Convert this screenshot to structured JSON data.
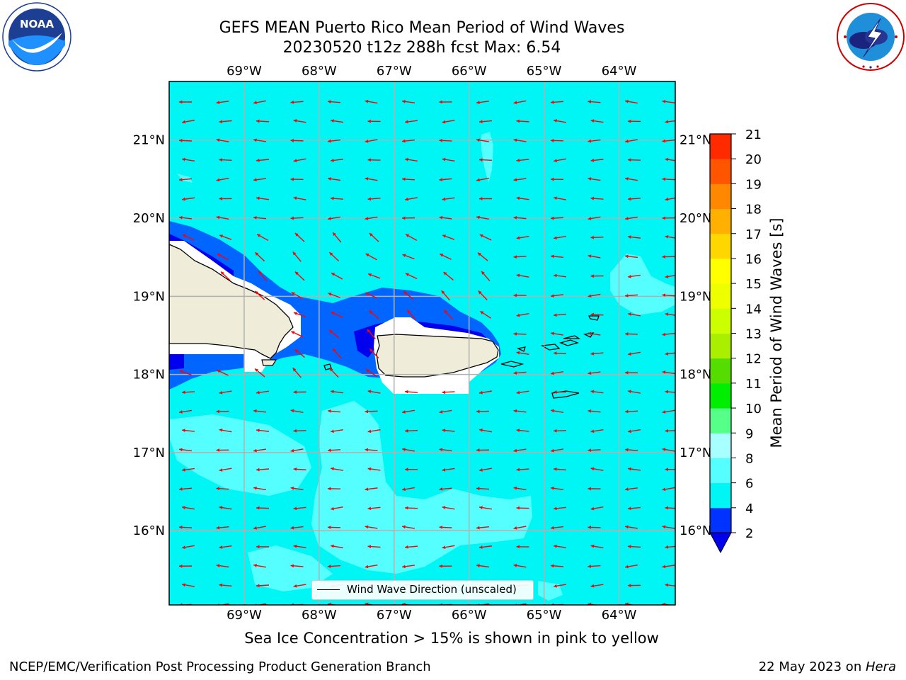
{
  "title": {
    "line1": "GEFS MEAN Puerto Rico Mean Period of Wind Waves",
    "line2": "20230520 t12z 288h fcst   Max: 6.54"
  },
  "logos": {
    "left": {
      "name": "NOAA",
      "text": "NOAA",
      "ring_text": "NATIONAL OCEANIC AND ATMOSPHERIC ADMINISTRATION · U.S. DEPARTMENT OF COMMERCE"
    },
    "right": {
      "name": "National Weather Service",
      "ring_text": "NATIONAL WEATHER SERVICE"
    }
  },
  "map": {
    "lon_range": [
      -70.0,
      -63.25
    ],
    "lat_range": [
      15.05,
      21.75
    ],
    "lon_ticks": [
      "69°W",
      "68°W",
      "67°W",
      "66°W",
      "65°W",
      "64°W"
    ],
    "lat_ticks": [
      "21°N",
      "20°N",
      "19°N",
      "18°N",
      "17°N",
      "16°N"
    ],
    "gridlines": true,
    "ocean_color": "#00f5f5",
    "land_color": "#efedda",
    "arrow_color": "#ff0000",
    "arrow_direction": "wind waves propagating toward the west"
  },
  "legend": {
    "label": "Wind Wave Direction (unscaled)",
    "placement": "lower-center"
  },
  "colorbar": {
    "label": "Mean Period of Wind Waves [s]",
    "ticks": [
      "2",
      "4",
      "6",
      "8",
      "9",
      "10",
      "11",
      "12",
      "13",
      "14",
      "15",
      "16",
      "17",
      "18",
      "19",
      "20",
      "21"
    ],
    "colors": [
      "#0033ff",
      "#00f5f5",
      "#55ffff",
      "#a8ffff",
      "#55ff88",
      "#00ee00",
      "#55dd00",
      "#aaee00",
      "#ccff00",
      "#eeff00",
      "#ffff00",
      "#ffd700",
      "#ffb000",
      "#ff8800",
      "#ff5500",
      "#ff2a00"
    ],
    "under_color": "#0000ee"
  },
  "caption": "Sea Ice Concentration > 15% is shown in pink to yellow",
  "footer": {
    "left": "NCEP/EMC/Verification Post Processing Product Generation Branch",
    "date": "22 May 2023 on ",
    "host": "Hera"
  }
}
